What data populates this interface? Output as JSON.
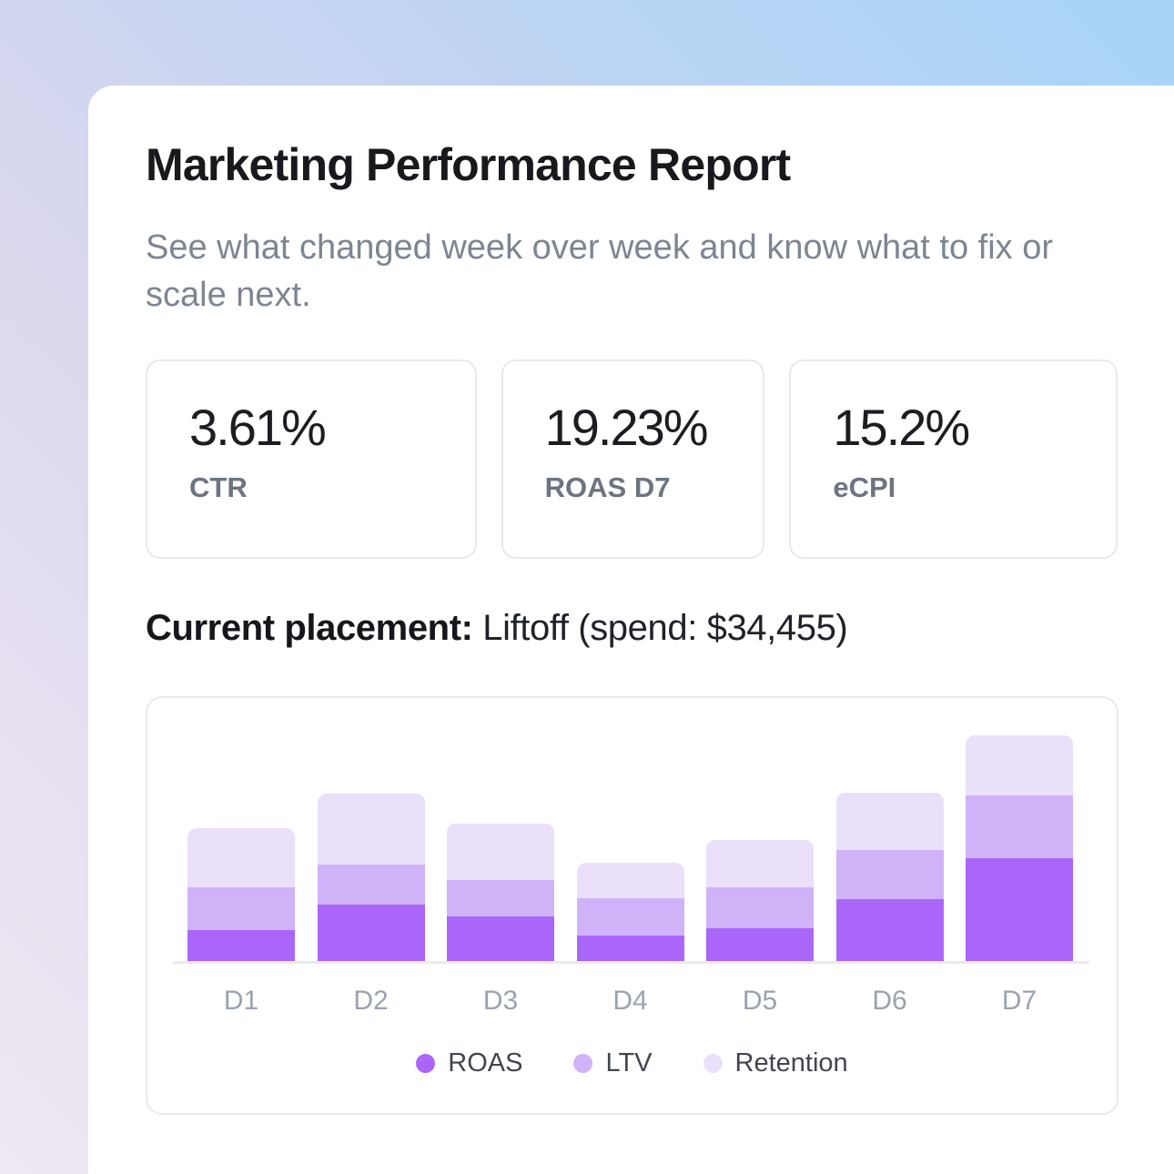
{
  "report": {
    "title": "Marketing Performance Report",
    "subtitle": "See what changed week over week  and know what to fix or scale next.",
    "metrics": [
      {
        "value": "3.61%",
        "label": "CTR"
      },
      {
        "value": "19.23%",
        "label": "ROAS D7"
      },
      {
        "value": "15.2%",
        "label": "eCPI"
      }
    ],
    "placement": {
      "prefix": "Current placement:",
      "value": "Liftoff (spend: $34,455)"
    }
  },
  "chart_data": {
    "type": "bar",
    "stacked": true,
    "categories": [
      "D1",
      "D2",
      "D3",
      "D4",
      "D5",
      "D6",
      "D7"
    ],
    "series": [
      {
        "name": "ROAS",
        "color": "#aa66f8",
        "values": [
          34,
          62,
          49,
          28,
          36,
          68,
          113
        ]
      },
      {
        "name": "LTV",
        "color": "#d0b2f8",
        "values": [
          47,
          44,
          40,
          41,
          45,
          54,
          69
        ]
      },
      {
        "name": "Retention",
        "color": "#eae0fa",
        "values": [
          65,
          78,
          62,
          39,
          52,
          63,
          66
        ]
      }
    ],
    "title": "",
    "xlabel": "",
    "ylabel": "",
    "ylim": [
      0,
      260
    ],
    "units": "relative (no y-axis shown; values proportional to bar segment heights)",
    "grid": false,
    "legend_position": "bottom"
  },
  "colors": {
    "accent_roas": "#aa66f8",
    "accent_ltv": "#d0b2f8",
    "accent_retention": "#eae0fa",
    "card_border": "#e8e9eb",
    "title_text": "#17191d",
    "muted_text": "#7d8591",
    "axis_label_text": "#9aa2ad",
    "bg_top_right": "#a7d4f8",
    "bg_mid": "#ddd8ee",
    "bg_bottom_left": "#f0e9f3"
  }
}
